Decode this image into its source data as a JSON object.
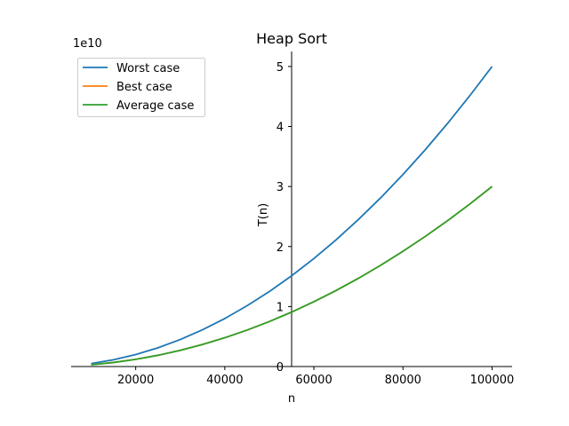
{
  "chart_data": {
    "type": "line",
    "title": "Heap Sort",
    "xlabel": "n",
    "ylabel": "T(n)",
    "y_offset_text": "1e10",
    "xlim": [
      5500,
      104500
    ],
    "ylim": [
      0,
      5.25
    ],
    "x_ticks": [
      20000,
      40000,
      60000,
      80000,
      100000
    ],
    "x_tick_labels": [
      "20000",
      "40000",
      "60000",
      "80000",
      "100000"
    ],
    "y_ticks": [
      0,
      1,
      2,
      3,
      4,
      5
    ],
    "y_tick_labels": [
      "0",
      "1",
      "2",
      "3",
      "4",
      "5"
    ],
    "x": [
      10000,
      15000,
      20000,
      25000,
      30000,
      35000,
      40000,
      45000,
      50000,
      55000,
      60000,
      65000,
      70000,
      75000,
      80000,
      85000,
      90000,
      95000,
      100000
    ],
    "series": [
      {
        "name": "Worst case",
        "color": "#1f77b4",
        "values": [
          0.05,
          0.1125,
          0.2,
          0.3125,
          0.45,
          0.6125,
          0.8,
          1.0125,
          1.25,
          1.5125,
          1.8,
          2.1125,
          2.45,
          2.8125,
          3.2,
          3.6125,
          4.05,
          4.5125,
          5.0
        ]
      },
      {
        "name": "Best case",
        "color": "#ff7f0e",
        "values": [
          0.03,
          0.0675,
          0.12,
          0.1875,
          0.27,
          0.3675,
          0.48,
          0.6075,
          0.75,
          0.9075,
          1.08,
          1.2675,
          1.47,
          1.6875,
          1.92,
          2.1675,
          2.43,
          2.7075,
          3.0
        ]
      },
      {
        "name": "Average case",
        "color": "#2ca02c",
        "values": [
          0.03,
          0.0675,
          0.12,
          0.1875,
          0.27,
          0.3675,
          0.48,
          0.6075,
          0.75,
          0.9075,
          1.08,
          1.2675,
          1.47,
          1.6875,
          1.92,
          2.1675,
          2.43,
          2.7075,
          3.0
        ]
      }
    ],
    "legend_position": "upper-left",
    "grid": false,
    "y_axis_at_x": 55000,
    "x_axis_at_y": 0
  }
}
